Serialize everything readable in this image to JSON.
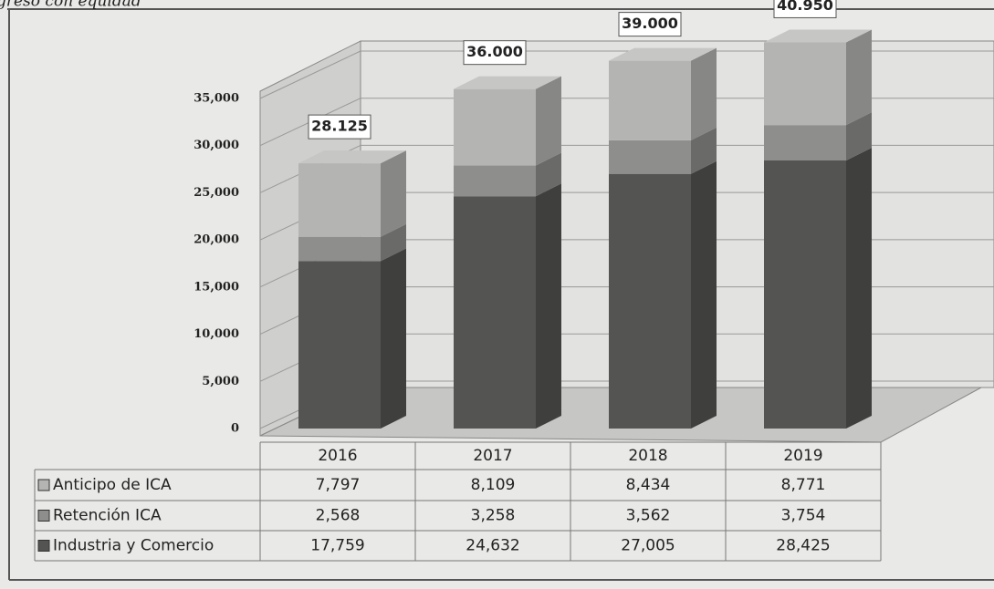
{
  "chart_data": {
    "type": "bar",
    "title": "greso con equidad",
    "categories": [
      "2016",
      "2017",
      "2018",
      "2019"
    ],
    "stacked": true,
    "series": [
      {
        "name": "Anticipo de ICA",
        "color": "#b4b4b2",
        "values": [
          7797,
          8109,
          8434,
          8771
        ],
        "value_labels": [
          "7,797",
          "8,109",
          "8,434",
          "8,771"
        ]
      },
      {
        "name": "Retención ICA",
        "color": "#8e8e8c",
        "values": [
          2568,
          3258,
          3562,
          3754
        ],
        "value_labels": [
          "2,568",
          "3,258",
          "3,562",
          "3,754"
        ]
      },
      {
        "name": "Industria y Comercio",
        "color": "#545453",
        "values": [
          17759,
          24632,
          27005,
          28425
        ],
        "value_labels": [
          "17,759",
          "24,632",
          "27,005",
          "28,425"
        ]
      }
    ],
    "annotations": [
      "28.125",
      "36.000",
      "39.000",
      "40.950"
    ],
    "ylim": [
      0,
      41000
    ],
    "yticks": [
      {
        "value": 0,
        "label": "0"
      },
      {
        "value": 5000,
        "label": "5,000"
      },
      {
        "value": 10000,
        "label": "10,000"
      },
      {
        "value": 15000,
        "label": "15,000"
      },
      {
        "value": 20000,
        "label": "20,000"
      },
      {
        "value": 25000,
        "label": "25,000"
      },
      {
        "value": 30000,
        "label": "30,000"
      },
      {
        "value": 35000,
        "label": "35,000"
      }
    ],
    "grid": true
  }
}
